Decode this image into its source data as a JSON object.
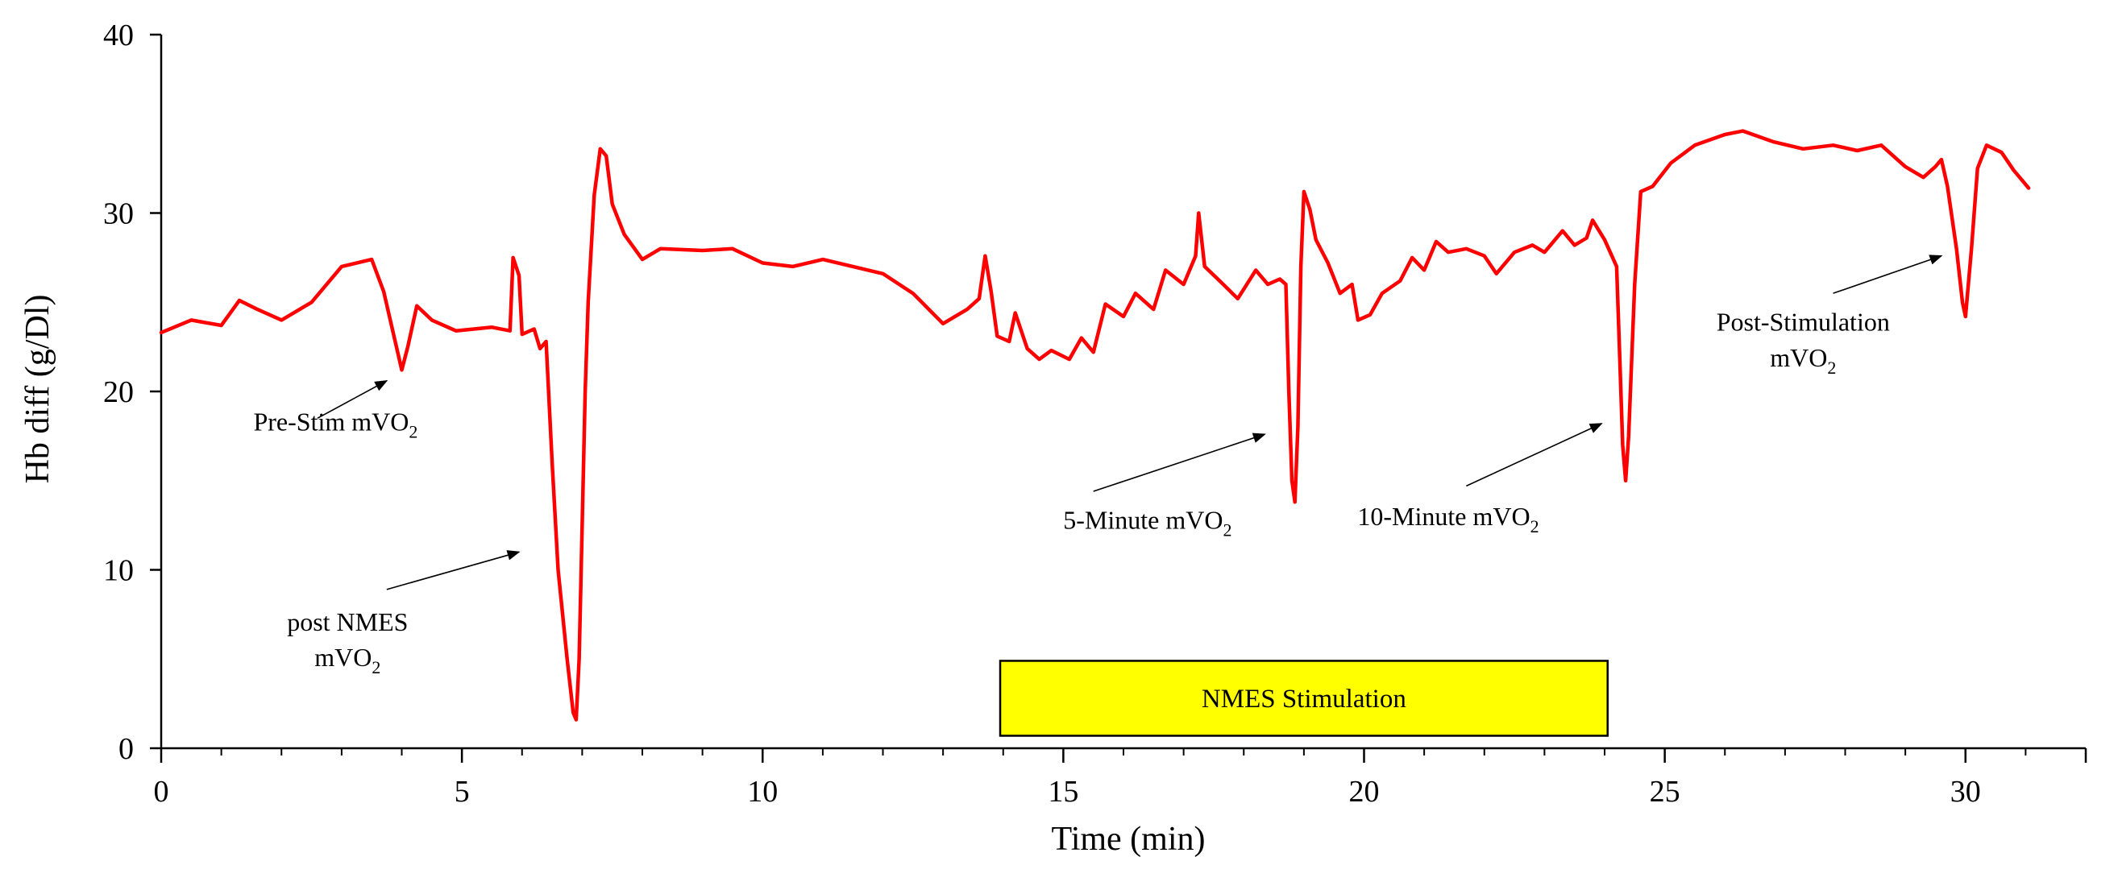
{
  "chart_data": {
    "type": "line",
    "title": "",
    "xlabel": "Time (min)",
    "ylabel": "Hb diff (g/Dl)",
    "xlim": [
      0,
      32
    ],
    "ylim": [
      0,
      40
    ],
    "x_ticks": [
      0,
      5,
      10,
      15,
      20,
      25,
      30
    ],
    "x_tick_labels": [
      "0",
      "5",
      "10",
      "15",
      "20",
      "25",
      "30"
    ],
    "x_minor_step": 1,
    "y_ticks": [
      0,
      10,
      20,
      30,
      40
    ],
    "y_tick_labels": [
      "0",
      "10",
      "20",
      "30",
      "40"
    ],
    "grid": false,
    "series": [
      {
        "name": "Hb diff",
        "color": "#ff0000",
        "points": [
          [
            0.0,
            23.3
          ],
          [
            0.5,
            24.0
          ],
          [
            1.0,
            23.7
          ],
          [
            1.3,
            25.1
          ],
          [
            1.6,
            24.6
          ],
          [
            2.0,
            24.0
          ],
          [
            2.5,
            25.0
          ],
          [
            3.0,
            27.0
          ],
          [
            3.5,
            27.4
          ],
          [
            3.7,
            25.6
          ],
          [
            4.0,
            21.2
          ],
          [
            4.1,
            22.5
          ],
          [
            4.25,
            24.8
          ],
          [
            4.5,
            24.0
          ],
          [
            4.9,
            23.4
          ],
          [
            5.5,
            23.6
          ],
          [
            5.8,
            23.4
          ],
          [
            5.85,
            27.5
          ],
          [
            5.95,
            26.5
          ],
          [
            6.0,
            23.2
          ],
          [
            6.2,
            23.5
          ],
          [
            6.3,
            22.4
          ],
          [
            6.4,
            22.8
          ],
          [
            6.5,
            16.0
          ],
          [
            6.6,
            10.0
          ],
          [
            6.75,
            5.0
          ],
          [
            6.85,
            2.0
          ],
          [
            6.9,
            1.6
          ],
          [
            6.95,
            5.0
          ],
          [
            7.05,
            20.0
          ],
          [
            7.1,
            25.0
          ],
          [
            7.2,
            31.0
          ],
          [
            7.3,
            33.6
          ],
          [
            7.4,
            33.2
          ],
          [
            7.5,
            30.5
          ],
          [
            7.7,
            28.8
          ],
          [
            8.0,
            27.4
          ],
          [
            8.3,
            28.0
          ],
          [
            9.0,
            27.9
          ],
          [
            9.5,
            28.0
          ],
          [
            10.0,
            27.2
          ],
          [
            10.5,
            27.0
          ],
          [
            11.0,
            27.4
          ],
          [
            11.5,
            27.0
          ],
          [
            12.0,
            26.6
          ],
          [
            12.5,
            25.5
          ],
          [
            13.0,
            23.8
          ],
          [
            13.4,
            24.6
          ],
          [
            13.6,
            25.2
          ],
          [
            13.7,
            27.6
          ],
          [
            13.8,
            25.6
          ],
          [
            13.9,
            23.1
          ],
          [
            14.1,
            22.8
          ],
          [
            14.2,
            24.4
          ],
          [
            14.4,
            22.4
          ],
          [
            14.6,
            21.8
          ],
          [
            14.8,
            22.3
          ],
          [
            15.1,
            21.8
          ],
          [
            15.3,
            23.0
          ],
          [
            15.5,
            22.2
          ],
          [
            15.7,
            24.9
          ],
          [
            16.0,
            24.2
          ],
          [
            16.2,
            25.5
          ],
          [
            16.5,
            24.6
          ],
          [
            16.7,
            26.8
          ],
          [
            17.0,
            26.0
          ],
          [
            17.2,
            27.6
          ],
          [
            17.25,
            30.0
          ],
          [
            17.35,
            27.0
          ],
          [
            17.6,
            26.2
          ],
          [
            17.9,
            25.2
          ],
          [
            18.2,
            26.8
          ],
          [
            18.4,
            26.0
          ],
          [
            18.6,
            26.3
          ],
          [
            18.7,
            26.0
          ],
          [
            18.75,
            20.0
          ],
          [
            18.8,
            15.0
          ],
          [
            18.85,
            13.8
          ],
          [
            18.9,
            18.0
          ],
          [
            18.95,
            27.0
          ],
          [
            19.0,
            31.2
          ],
          [
            19.1,
            30.2
          ],
          [
            19.2,
            28.5
          ],
          [
            19.4,
            27.2
          ],
          [
            19.6,
            25.5
          ],
          [
            19.8,
            26.0
          ],
          [
            19.9,
            24.0
          ],
          [
            20.1,
            24.3
          ],
          [
            20.3,
            25.5
          ],
          [
            20.6,
            26.2
          ],
          [
            20.8,
            27.5
          ],
          [
            21.0,
            26.8
          ],
          [
            21.2,
            28.4
          ],
          [
            21.4,
            27.8
          ],
          [
            21.7,
            28.0
          ],
          [
            22.0,
            27.6
          ],
          [
            22.2,
            26.6
          ],
          [
            22.5,
            27.8
          ],
          [
            22.8,
            28.2
          ],
          [
            23.0,
            27.8
          ],
          [
            23.3,
            29.0
          ],
          [
            23.5,
            28.2
          ],
          [
            23.7,
            28.6
          ],
          [
            23.8,
            29.6
          ],
          [
            24.0,
            28.5
          ],
          [
            24.2,
            27.0
          ],
          [
            24.25,
            22.0
          ],
          [
            24.3,
            17.0
          ],
          [
            24.35,
            15.0
          ],
          [
            24.4,
            17.5
          ],
          [
            24.5,
            26.0
          ],
          [
            24.6,
            31.2
          ],
          [
            24.8,
            31.5
          ],
          [
            25.1,
            32.8
          ],
          [
            25.5,
            33.8
          ],
          [
            26.0,
            34.4
          ],
          [
            26.3,
            34.6
          ],
          [
            26.8,
            34.0
          ],
          [
            27.3,
            33.6
          ],
          [
            27.8,
            33.8
          ],
          [
            28.2,
            33.5
          ],
          [
            28.6,
            33.8
          ],
          [
            29.0,
            32.6
          ],
          [
            29.3,
            32.0
          ],
          [
            29.5,
            32.6
          ],
          [
            29.6,
            33.0
          ],
          [
            29.7,
            31.5
          ],
          [
            29.85,
            28.0
          ],
          [
            29.95,
            25.0
          ],
          [
            30.0,
            24.2
          ],
          [
            30.1,
            28.0
          ],
          [
            30.2,
            32.5
          ],
          [
            30.35,
            33.8
          ],
          [
            30.6,
            33.4
          ],
          [
            30.8,
            32.4
          ],
          [
            31.0,
            31.6
          ],
          [
            31.05,
            31.4
          ]
        ]
      }
    ],
    "shaded_box": {
      "label": "NMES Stimulation",
      "x_start": 13.95,
      "x_end": 24.05,
      "y_low": 0.7,
      "y_high": 4.9,
      "fill": "#ffff00",
      "stroke": "#000000"
    },
    "annotations": [
      {
        "id": "pre-stim",
        "text": "Pre-Stim mVO",
        "sub": "2",
        "text_x": 2.9,
        "text_y": 17.8,
        "arrow_from": [
          2.6,
          18.5
        ],
        "arrow_to": [
          3.75,
          20.6
        ]
      },
      {
        "id": "post-nmes",
        "text": "post NMES",
        "text2": "mVO",
        "sub": "2",
        "text_x": 3.1,
        "text_y": 6.6,
        "text2_y": 4.6,
        "arrow_from": [
          3.75,
          8.9
        ],
        "arrow_to": [
          5.95,
          11.0
        ]
      },
      {
        "id": "five-min",
        "text": "5-Minute mVO",
        "sub": "2",
        "text_x": 16.4,
        "text_y": 12.3,
        "arrow_from": [
          15.5,
          14.4
        ],
        "arrow_to": [
          18.35,
          17.6
        ]
      },
      {
        "id": "ten-min",
        "text": "10-Minute mVO",
        "sub": "2",
        "text_x": 21.4,
        "text_y": 12.5,
        "arrow_from": [
          21.7,
          14.7
        ],
        "arrow_to": [
          23.95,
          18.2
        ]
      },
      {
        "id": "post-stim",
        "text": "Post-Stimulation",
        "text2": "mVO",
        "sub": "2",
        "text_x": 27.3,
        "text_y": 23.4,
        "text2_y": 21.4,
        "arrow_from": [
          27.8,
          25.5
        ],
        "arrow_to": [
          29.6,
          27.6
        ]
      }
    ]
  }
}
